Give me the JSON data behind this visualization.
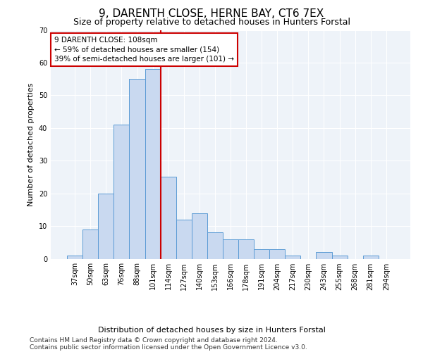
{
  "title": "9, DARENTH CLOSE, HERNE BAY, CT6 7EX",
  "subtitle": "Size of property relative to detached houses in Hunters Forstal",
  "xlabel": "Distribution of detached houses by size in Hunters Forstal",
  "ylabel": "Number of detached properties",
  "categories": [
    "37sqm",
    "50sqm",
    "63sqm",
    "76sqm",
    "88sqm",
    "101sqm",
    "114sqm",
    "127sqm",
    "140sqm",
    "153sqm",
    "166sqm",
    "178sqm",
    "191sqm",
    "204sqm",
    "217sqm",
    "230sqm",
    "243sqm",
    "255sqm",
    "268sqm",
    "281sqm",
    "294sqm"
  ],
  "values": [
    1,
    9,
    20,
    41,
    55,
    58,
    25,
    12,
    14,
    8,
    6,
    6,
    3,
    3,
    1,
    0,
    2,
    1,
    0,
    1,
    0
  ],
  "bar_color": "#c9d9f0",
  "bar_edge_color": "#5b9bd5",
  "vline_x": 5.5,
  "vline_color": "#cc0000",
  "ylim": [
    0,
    70
  ],
  "yticks": [
    0,
    10,
    20,
    30,
    40,
    50,
    60,
    70
  ],
  "annotation_lines": [
    "9 DARENTH CLOSE: 108sqm",
    "← 59% of detached houses are smaller (154)",
    "39% of semi-detached houses are larger (101) →"
  ],
  "annotation_box_color": "#cc0000",
  "footer1": "Contains HM Land Registry data © Crown copyright and database right 2024.",
  "footer2": "Contains public sector information licensed under the Open Government Licence v3.0.",
  "bg_color": "#eef3f9",
  "grid_color": "#ffffff",
  "title_fontsize": 11,
  "subtitle_fontsize": 9,
  "axis_label_fontsize": 8,
  "tick_fontsize": 7,
  "annotation_fontsize": 7.5,
  "footer_fontsize": 6.5
}
